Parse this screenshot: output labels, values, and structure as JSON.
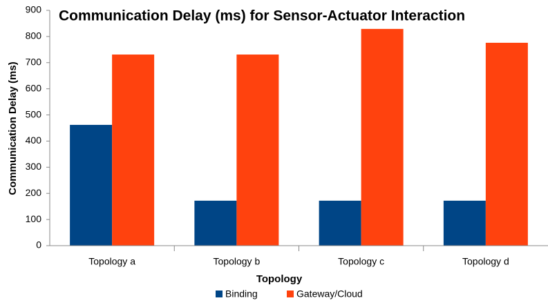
{
  "chart_data": {
    "type": "bar",
    "title": "Communication Delay (ms) for Sensor-Actuator Interaction",
    "x_label": "Topology",
    "y_label": "Communication Delay (ms)",
    "categories": [
      "Topology a",
      "Topology b",
      "Topology c",
      "Topology d"
    ],
    "series": [
      {
        "name": "Binding",
        "color": "#004586",
        "values": [
          462,
          172,
          172,
          172
        ]
      },
      {
        "name": "Gateway/Cloud",
        "color": "#ff420e",
        "values": [
          731,
          731,
          829,
          776
        ]
      }
    ],
    "ylim": [
      0,
      900
    ],
    "yticks": [
      0,
      100,
      200,
      300,
      400,
      500,
      600,
      700,
      800,
      900
    ],
    "grid": false,
    "legend": "bottom"
  }
}
